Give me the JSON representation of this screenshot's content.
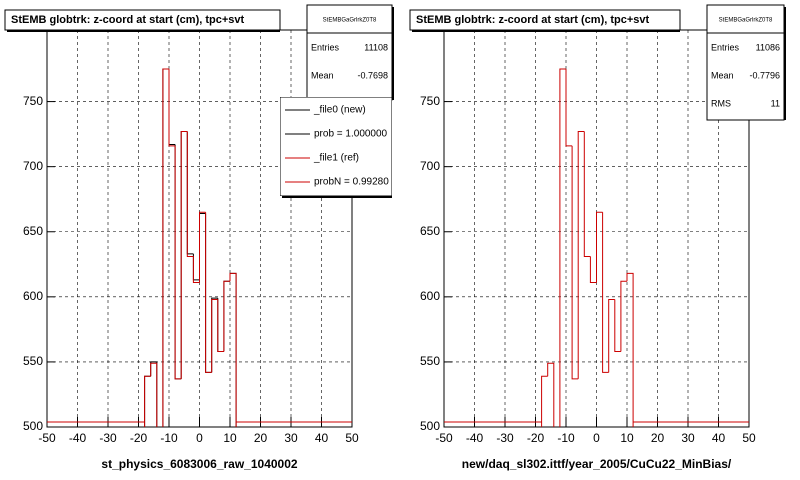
{
  "chart_data": [
    {
      "type": "histogram",
      "title": "StEMB globtrk: z-coord at start (cm), tpc+svt",
      "xlabel": "st_physics_6083006_raw_1040002",
      "bins": [
        -18,
        -16,
        -14,
        -12,
        -10,
        -8,
        -6,
        -4,
        -2,
        0,
        2,
        4,
        6,
        8,
        10,
        12
      ],
      "series": [
        {
          "name": "_file0 (new)",
          "color": "#000000",
          "values": [
            539,
            550,
            null,
            775,
            717,
            537,
            727,
            633,
            613,
            664,
            542,
            599,
            558,
            612,
            618
          ]
        },
        {
          "name": "_file1 (ref)",
          "color": "#cc0000",
          "values": [
            539,
            549,
            null,
            775,
            716,
            537,
            727,
            631,
            611,
            665,
            542,
            598,
            558,
            612,
            618
          ]
        }
      ],
      "legend_notes": [
        "prob = 1.000000",
        "probN = 0.99280"
      ],
      "stats": {
        "title": "StEMBGaGrlrkZ0T8",
        "rows": [
          {
            "label": "Entries",
            "value": 11108
          },
          {
            "label": "Mean",
            "value": -0.7698
          }
        ]
      },
      "xlim": [
        -50,
        50
      ],
      "xticks": [
        -50,
        -40,
        -30,
        -20,
        -10,
        0,
        10,
        20,
        30,
        40,
        50
      ],
      "ylim": [
        500,
        805
      ],
      "yticks": [
        500,
        550,
        600,
        650,
        700,
        750
      ],
      "grid": true
    },
    {
      "type": "histogram",
      "title": "StEMB globtrk: z-coord at start (cm), tpc+svt",
      "xlabel": "new/daq_sl302.ittf/year_2005/CuCu22_MinBias/",
      "bins": [
        -18,
        -16,
        -14,
        -12,
        -10,
        -8,
        -6,
        -4,
        -2,
        0,
        2,
        4,
        6,
        8,
        10,
        12
      ],
      "series": [
        {
          "color": "#cc0000",
          "values": [
            539,
            549,
            null,
            775,
            716,
            537,
            727,
            631,
            611,
            665,
            542,
            598,
            558,
            612,
            618
          ]
        }
      ],
      "stats": {
        "title": "StEMBGaGrlrkZ0T8",
        "rows": [
          {
            "label": "Entries",
            "value": 11086
          },
          {
            "label": "Mean",
            "value": -0.7796
          },
          {
            "label": "RMS",
            "value": 11
          }
        ]
      },
      "xlim": [
        -50,
        50
      ],
      "xticks": [
        -50,
        -40,
        -30,
        -20,
        -10,
        0,
        10,
        20,
        30,
        40,
        50
      ],
      "ylim": [
        500,
        805
      ],
      "yticks": [
        500,
        550,
        600,
        650,
        700,
        750
      ],
      "grid": true
    }
  ]
}
